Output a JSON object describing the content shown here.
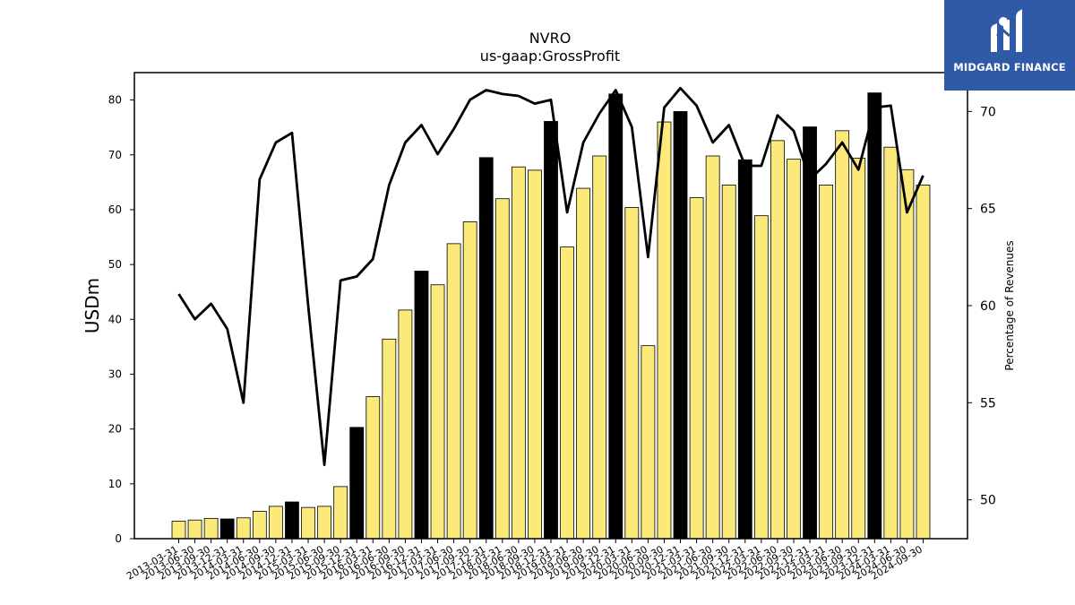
{
  "brand": {
    "name": "MIDGARD FINANCE",
    "color": "#2f5aa8",
    "logo_icon": "midgard-finance-logo-icon"
  },
  "chart_data": {
    "type": "bar",
    "title": "NVRO",
    "subtitle": "us-gaap:GrossProfit",
    "ylabel": "USDm",
    "y2label": "Percentage of Revenues",
    "ylim": [
      0,
      85
    ],
    "y2lim": [
      48,
      72
    ],
    "yticks": [
      0,
      10,
      20,
      30,
      40,
      50,
      60,
      70,
      80
    ],
    "y2ticks": [
      50,
      55,
      60,
      65,
      70
    ],
    "categories": [
      "2013-03-31",
      "2013-06-30",
      "2013-09-30",
      "2013-12-31",
      "2014-03-31",
      "2014-06-30",
      "2014-09-30",
      "2014-12-31",
      "2015-03-31",
      "2015-06-30",
      "2015-09-30",
      "2015-12-31",
      "2016-03-31",
      "2016-06-30",
      "2016-09-30",
      "2016-12-31",
      "2017-03-31",
      "2017-06-30",
      "2017-09-30",
      "2017-12-31",
      "2018-03-31",
      "2018-06-30",
      "2018-09-30",
      "2018-12-31",
      "2019-03-31",
      "2019-06-30",
      "2019-09-30",
      "2019-12-31",
      "2020-03-31",
      "2020-06-30",
      "2020-09-30",
      "2020-12-31",
      "2021-03-31",
      "2021-06-30",
      "2021-09-30",
      "2021-12-31",
      "2022-03-31",
      "2022-06-30",
      "2022-09-30",
      "2022-12-31",
      "2023-03-31",
      "2023-06-30",
      "2023-09-30",
      "2023-12-31",
      "2024-03-31",
      "2024-06-30",
      "2024-09-30"
    ],
    "series": [
      {
        "type": "bar",
        "color": "#fbe97a",
        "highlight_color": "#000000",
        "values": [
          3.2,
          3.4,
          3.7,
          3.6,
          3.8,
          5.0,
          5.9,
          6.7,
          5.7,
          5.9,
          9.5,
          20.3,
          25.9,
          36.4,
          41.7,
          48.8,
          46.3,
          53.8,
          57.8,
          69.5,
          62.0,
          67.8,
          67.2,
          76.1,
          53.2,
          63.9,
          69.8,
          81.1,
          60.4,
          35.2,
          76.0,
          77.9,
          62.2,
          69.8,
          64.5,
          69.1,
          58.9,
          72.6,
          69.2,
          75.1,
          64.5,
          74.4,
          69.4,
          81.3,
          71.4,
          67.3,
          64.5
        ],
        "highlight": [
          false,
          false,
          false,
          true,
          false,
          false,
          false,
          true,
          false,
          false,
          false,
          true,
          false,
          false,
          false,
          true,
          false,
          false,
          false,
          true,
          false,
          false,
          false,
          true,
          false,
          false,
          false,
          true,
          false,
          false,
          false,
          true,
          false,
          false,
          false,
          true,
          false,
          false,
          false,
          true,
          false,
          false,
          false,
          true,
          false,
          false,
          false
        ]
      },
      {
        "type": "line",
        "axis": "right",
        "color": "#000000",
        "values": [
          60.6,
          59.3,
          60.1,
          58.8,
          55.0,
          66.5,
          68.4,
          68.9,
          60.0,
          51.8,
          61.3,
          61.5,
          62.4,
          66.2,
          68.4,
          69.3,
          67.8,
          69.1,
          70.6,
          71.1,
          70.9,
          70.8,
          70.4,
          70.6,
          64.8,
          68.4,
          69.9,
          71.1,
          69.2,
          62.5,
          70.2,
          71.2,
          70.3,
          68.4,
          69.3,
          67.2,
          67.2,
          69.8,
          69.0,
          66.5,
          67.3,
          68.4,
          67.0,
          70.2,
          70.3,
          64.8,
          66.7
        ]
      }
    ]
  }
}
